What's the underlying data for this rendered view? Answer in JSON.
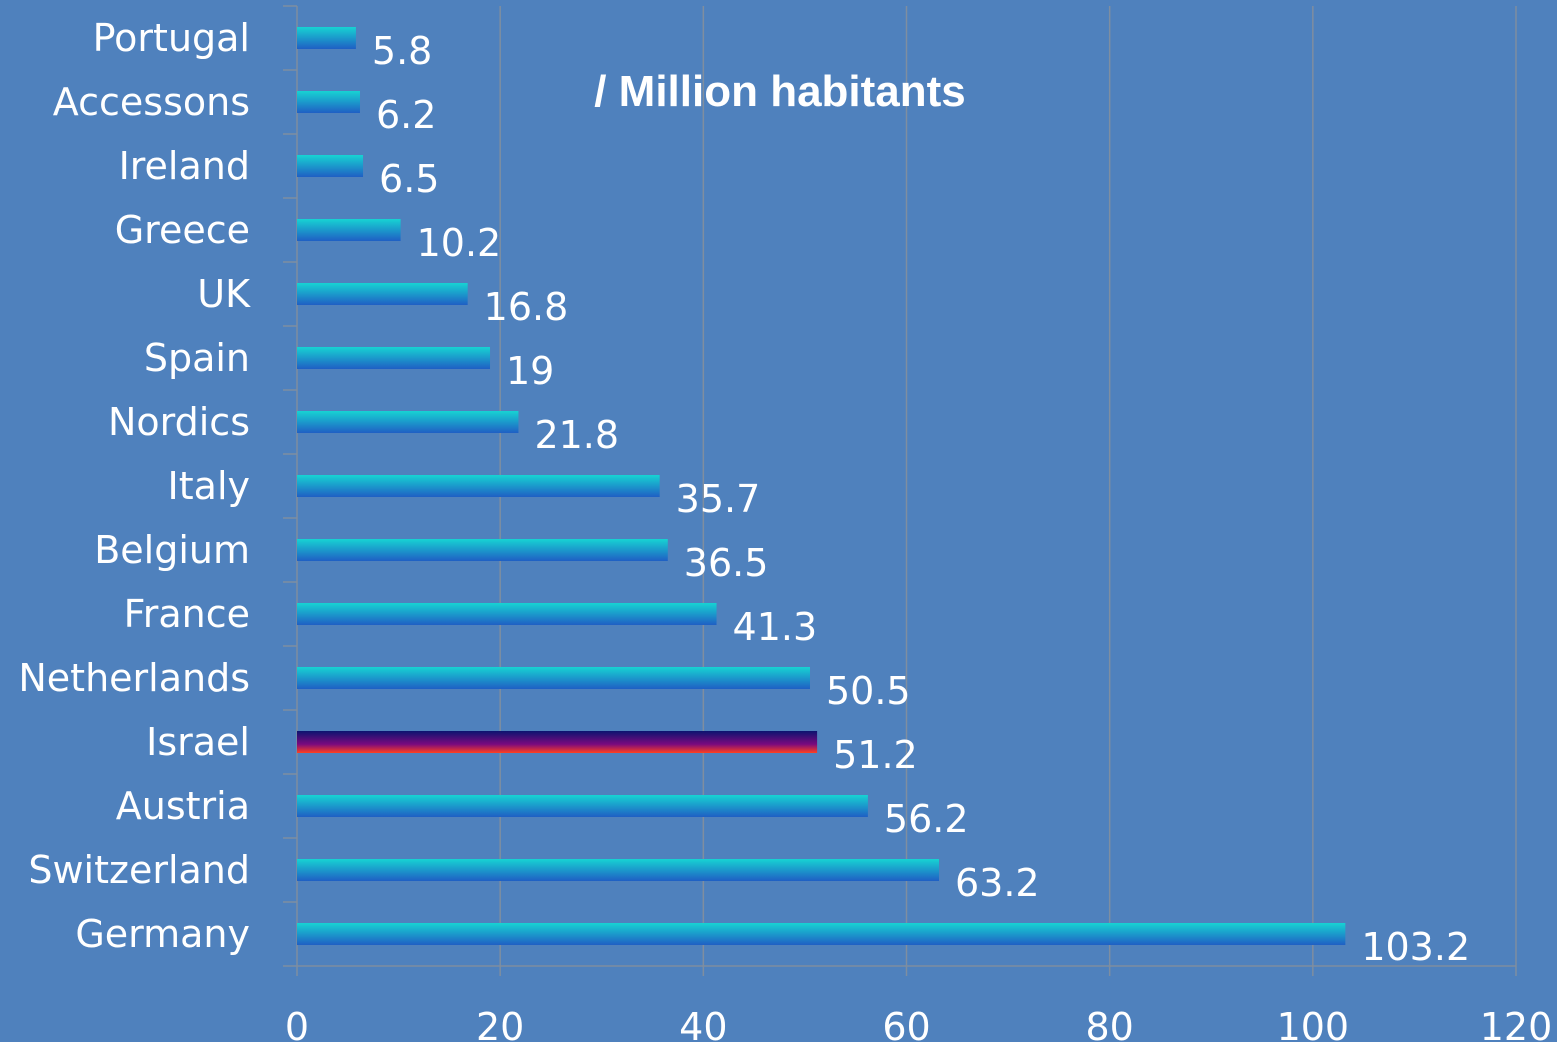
{
  "chart_data": {
    "type": "bar",
    "orientation": "horizontal",
    "title": "/ Million habitants",
    "xlabel": "",
    "ylabel": "",
    "xlim": [
      0,
      120
    ],
    "xticks": [
      0,
      20,
      40,
      60,
      80,
      100,
      120
    ],
    "grid": "vertical",
    "legend": "none",
    "categories": [
      "Portugal",
      "Accessons",
      "Ireland",
      "Greece",
      "UK",
      "Spain",
      "Nordics",
      "Italy",
      "Belgium",
      "France",
      "Netherlands",
      "Israel",
      "Austria",
      "Switzerland",
      "Germany"
    ],
    "values": [
      5.8,
      6.2,
      6.5,
      10.2,
      16.8,
      19,
      21.8,
      35.7,
      36.5,
      41.3,
      50.5,
      51.2,
      56.2,
      63.2,
      103.2
    ],
    "value_labels": [
      "5.8",
      "6.2",
      "6.5",
      "10.2",
      "16.8",
      "19",
      "21.8",
      "35.7",
      "36.5",
      "41.3",
      "50.5",
      "51.2",
      "56.2",
      "63.2",
      "103.2"
    ],
    "highlight_category": "Israel",
    "colors": {
      "background": "#4f81bd",
      "bar_top": "#17d3d3",
      "bar_bottom": "#1f5fc4",
      "highlight_top": "#0b1470",
      "highlight_mid": "#7a0a7e",
      "highlight_bottom": "#ff4020",
      "gridline": "#7f8ea0",
      "text": "#ffffff"
    }
  }
}
